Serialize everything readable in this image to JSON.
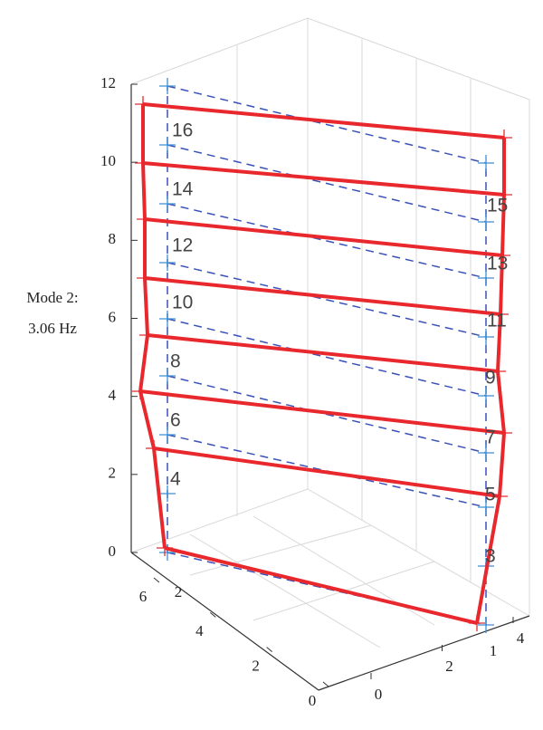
{
  "chart_data": {
    "type": "mode-shape-3d",
    "annotation": [
      "Mode 2:",
      "3.06 Hz"
    ],
    "zlim": [
      0,
      12
    ],
    "zticks": [
      0,
      2,
      4,
      6,
      8,
      10,
      12
    ],
    "xlim": [
      0,
      6
    ],
    "xticks": [
      0,
      2,
      4,
      6
    ],
    "ylim": [
      0,
      4
    ],
    "yticks": [
      0,
      2,
      4
    ],
    "inner_ticks": [
      2,
      1
    ],
    "grid": true,
    "deformed_color": "#e8282c",
    "undeformed_color": "#3a52b8",
    "left_node_labels": [
      "4",
      "6",
      "8",
      "10",
      "12",
      "14",
      "16"
    ],
    "right_node_labels": [
      "3",
      "5",
      "7",
      "9",
      "11",
      "13",
      "15"
    ]
  }
}
